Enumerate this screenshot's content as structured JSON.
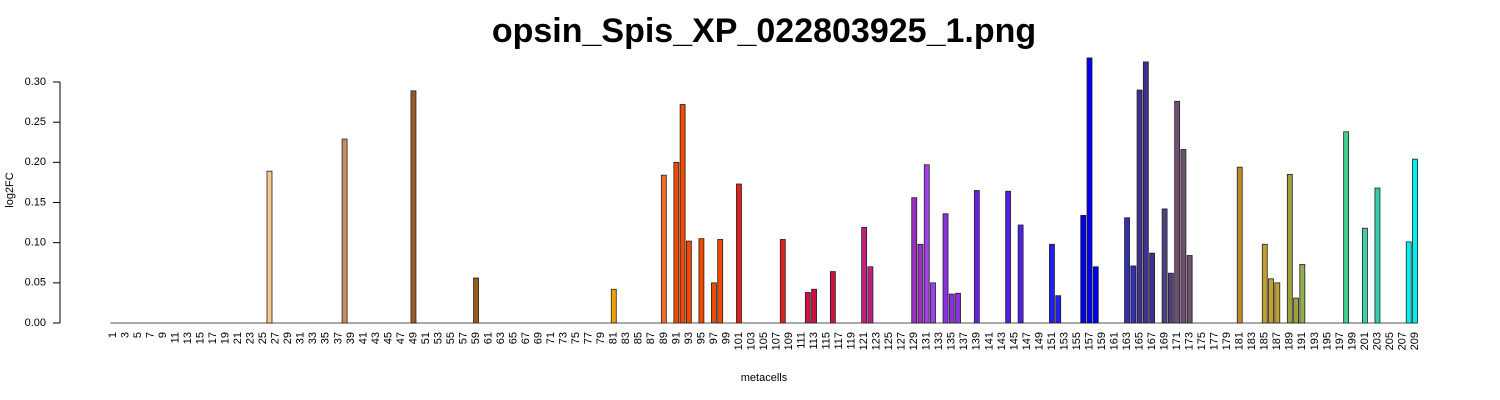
{
  "chart_data": {
    "type": "bar",
    "title": "opsin_Spis_XP_022803925_1.png",
    "xlabel": "metacells",
    "ylabel": "log2FC",
    "categories": [
      "1",
      null,
      "3",
      null,
      "5",
      null,
      "7",
      null,
      "9",
      null,
      "11",
      null,
      "13",
      null,
      "15",
      null,
      "17",
      null,
      "19",
      null,
      "21",
      null,
      "23",
      null,
      "25",
      null,
      "27",
      null,
      "29",
      null,
      "31",
      null,
      "33",
      null,
      "35",
      null,
      "37",
      null,
      "39",
      null,
      "41",
      null,
      "43",
      null,
      "45",
      null,
      "47",
      null,
      "49",
      null,
      "51",
      null,
      "53",
      null,
      "55",
      null,
      "57",
      null,
      "59",
      null,
      "61",
      null,
      "63",
      null,
      "65",
      null,
      "67",
      null,
      "69",
      null,
      "71",
      null,
      "73",
      null,
      "75",
      null,
      "77",
      null,
      "79",
      null,
      "81",
      null,
      "83",
      null,
      "85",
      null,
      "87",
      null,
      "89",
      null,
      "91",
      null,
      "93",
      null,
      "95",
      null,
      "97",
      null,
      "99",
      null,
      "101",
      null,
      "103",
      null,
      "105",
      null,
      "107",
      null,
      "109",
      null,
      "111",
      null,
      "113",
      null,
      "115",
      null,
      "117",
      null,
      "119",
      null,
      "121",
      null,
      "123",
      null,
      "125",
      null,
      "127",
      null,
      "129",
      null,
      "131",
      null,
      "133",
      null,
      "135",
      null,
      "137",
      null,
      "139",
      null,
      "141",
      null,
      "143",
      null,
      "145",
      null,
      "147",
      null,
      "149",
      null,
      "151",
      null,
      "153",
      null,
      "155",
      null,
      "157",
      null,
      "159",
      null,
      "161",
      null,
      "163",
      null,
      "165",
      null,
      "167",
      null,
      "169",
      null,
      "171",
      null,
      "173",
      null,
      "175",
      null,
      "177",
      null,
      "179",
      null,
      "181",
      null,
      "183",
      null,
      "185",
      null,
      "187",
      null,
      "189",
      null,
      "191",
      null,
      "193",
      null,
      "195",
      null,
      "197",
      null,
      "199",
      null,
      "201",
      null,
      "203",
      null,
      "205",
      null,
      "207",
      null,
      "209"
    ],
    "values": [
      0,
      0,
      0,
      0,
      0,
      0,
      0,
      0,
      0,
      0,
      0,
      0,
      0,
      0,
      0,
      0,
      0,
      0,
      0,
      0,
      0,
      0,
      0,
      0,
      0,
      0.189,
      0,
      0,
      0,
      0,
      0,
      0,
      0,
      0,
      0,
      0,
      0,
      0.229,
      0,
      0,
      0,
      0,
      0,
      0,
      0,
      0,
      0,
      0,
      0.289,
      0,
      0,
      0,
      0,
      0,
      0,
      0,
      0,
      0,
      0.056,
      0,
      0,
      0,
      0,
      0,
      0,
      0,
      0,
      0,
      0,
      0,
      0,
      0,
      0,
      0,
      0,
      0,
      0,
      0,
      0,
      0,
      0.042,
      0,
      0,
      0,
      0,
      0,
      0,
      0,
      0.184,
      0,
      0.2,
      0.272,
      0.102,
      0,
      0.105,
      0,
      0.05,
      0.104,
      0,
      0,
      0.173,
      0,
      0,
      0,
      0,
      0,
      0,
      0.104,
      0,
      0,
      0,
      0.038,
      0.042,
      0,
      0,
      0.064,
      0,
      0,
      0,
      0,
      0.119,
      0.07,
      0,
      0,
      0,
      0,
      0,
      0,
      0.156,
      0.098,
      0.197,
      0.05,
      0,
      0.136,
      0.036,
      0.037,
      0,
      0,
      0.165,
      0,
      0,
      0,
      0,
      0.164,
      0,
      0.122,
      0,
      0,
      0,
      0,
      0.098,
      0.034,
      0,
      0,
      0,
      0.134,
      0.33,
      0.07,
      0,
      0,
      0,
      0,
      0.131,
      0.071,
      0.29,
      0.325,
      0.087,
      0,
      0.142,
      0.062,
      0.276,
      0.216,
      0.084,
      0,
      0,
      0,
      0,
      0,
      0,
      0,
      0.194,
      0,
      0,
      0,
      0.098,
      0.055,
      0.05,
      0,
      0.185,
      0.031,
      0.073,
      0,
      0,
      0,
      0,
      0,
      0,
      0.238,
      0,
      0,
      0.118,
      0,
      0.168,
      0,
      0,
      0,
      0,
      0.101,
      0.204
    ],
    "colors": [
      "#f5c98f",
      "#f5c98f",
      "#f5c98f",
      "#f5c98f",
      "#f5c98f",
      "#f5c98f",
      "#f5c98f",
      "#f5c98f",
      "#f5c98f",
      "#f5c98f",
      "#f5c98f",
      "#f5c98f",
      "#f5c98f",
      "#f5c98f",
      "#f5c98f",
      "#f5c98f",
      "#f5c98f",
      "#f5c98f",
      "#f5c98f",
      "#f5c98f",
      "#f5c98f",
      "#f5c98f",
      "#f5c98f",
      "#f5c98f",
      "#f5c98f",
      "#f5c98f",
      "#f5c98f",
      "#f5c98f",
      "#f5c98f",
      "#f5c98f",
      "#c8905a",
      "#c8905a",
      "#c8905a",
      "#c8905a",
      "#c8905a",
      "#c8905a",
      "#c8905a",
      "#c8905a",
      "#c8905a",
      "#c8905a",
      "#c8905a",
      "#c8905a",
      "#c8905a",
      "#c8905a",
      "#c8905a",
      "#9a5a2a",
      "#9a5a2a",
      "#9a5a2a",
      "#9a5a2a",
      "#9a5a2a",
      "#9a5a2a",
      "#9a5a2a",
      "#9a5a2a",
      "#9a5a2a",
      "#9a5a2a",
      "#9a5a1a",
      "#9a5a1a",
      "#9a5a1a",
      "#9a5a1a",
      "#9a5a1a",
      "#9a5a1a",
      "#9a5a1a",
      "#9a5a1a",
      "#9a5a1a",
      "#9a5a1a",
      "#9a5a1a",
      "#9a5a1a",
      "#9a5a1a",
      "#9a5a1a",
      "#9a5a1a",
      "#f0a000",
      "#f0a000",
      "#f0a000",
      "#f0a000",
      "#f0a000",
      "#f0a000",
      "#f0a000",
      "#f0a000",
      "#f0a000",
      "#f0a000",
      "#f0a000",
      "#f0a000",
      "#f0a000",
      "#f0a000",
      "#f0a000",
      "#f07020",
      "#f07020",
      "#f07020",
      "#f07020",
      "#f07020",
      "#f04a00",
      "#f04a00",
      "#f04a00",
      "#f04a00",
      "#f04a00",
      "#f04a00",
      "#f04a00",
      "#f04a00",
      "#f04a00",
      "#f04a00",
      "#e02020",
      "#e02020",
      "#e02020",
      "#e02020",
      "#e02020",
      "#e02020",
      "#e02020",
      "#e02020",
      "#e02020",
      "#e02020",
      "#d01040",
      "#d01040",
      "#d01040",
      "#d01040",
      "#d01040",
      "#d01040",
      "#d01040",
      "#d01040",
      "#c02080",
      "#c02080",
      "#c02080",
      "#c02080",
      "#c02080",
      "#c02080",
      "#c02080",
      "#9a30c0",
      "#9a30c0",
      "#9a30c0",
      "#9a30c0",
      "#9a30c0",
      "#a040e8",
      "#a040e8",
      "#a040e8",
      "#8a30e0",
      "#8a30e0",
      "#8a30e0",
      "#8a30e0",
      "#8a30e0",
      "#6a20e0",
      "#6a20e0",
      "#6a20e0",
      "#6a20e0",
      "#6a20e0",
      "#5020e0",
      "#5020e0",
      "#5020e0",
      "#5020e0",
      "#5020e0",
      "#5020e0",
      "#2020f0",
      "#2020f0",
      "#2020f0",
      "#2020f0",
      "#2020f0",
      "#2020f0",
      "#0000f0",
      "#0000f0",
      "#0000f0",
      "#0000f0",
      "#0000f0",
      "#3030b0",
      "#3030b0",
      "#3030b0",
      "#3030b0",
      "#403090",
      "#403090",
      "#403090",
      "#504080",
      "#504080",
      "#504080",
      "#705070",
      "#705070",
      "#705070",
      "#b08020",
      "#b08020",
      "#b08020",
      "#b08020",
      "#b08020",
      "#b08020",
      "#b08020",
      "#b88a2a",
      "#b88a2a",
      "#c0a030",
      "#c0a030",
      "#c0a030",
      "#c0a030",
      "#c0a030",
      "#c0a030",
      "#a0a040",
      "#a0a040",
      "#90b050",
      "#90b050",
      "#40c080",
      "#40c080",
      "#40c080",
      "#40c080",
      "#40c080",
      "#40d090",
      "#40d090",
      "#40d0b0",
      "#40d0b0",
      "#30d0b0",
      "#30d0b0",
      "#30d0b0",
      "#30d0b0",
      "#00f0f0",
      "#00f0f0",
      "#00f0f0",
      "#00f0f0"
    ],
    "ylim": [
      0,
      0.33
    ],
    "yticks": [
      {
        "value": 0,
        "label": "0.00"
      },
      {
        "value": 0.05,
        "label": "0.05"
      },
      {
        "value": 0.1,
        "label": "0.10"
      },
      {
        "value": 0.15,
        "label": "0.15"
      },
      {
        "value": 0.2,
        "label": "0.20"
      },
      {
        "value": 0.25,
        "label": "0.25"
      },
      {
        "value": 0.3,
        "label": "0.30"
      }
    ],
    "grid": false
  }
}
